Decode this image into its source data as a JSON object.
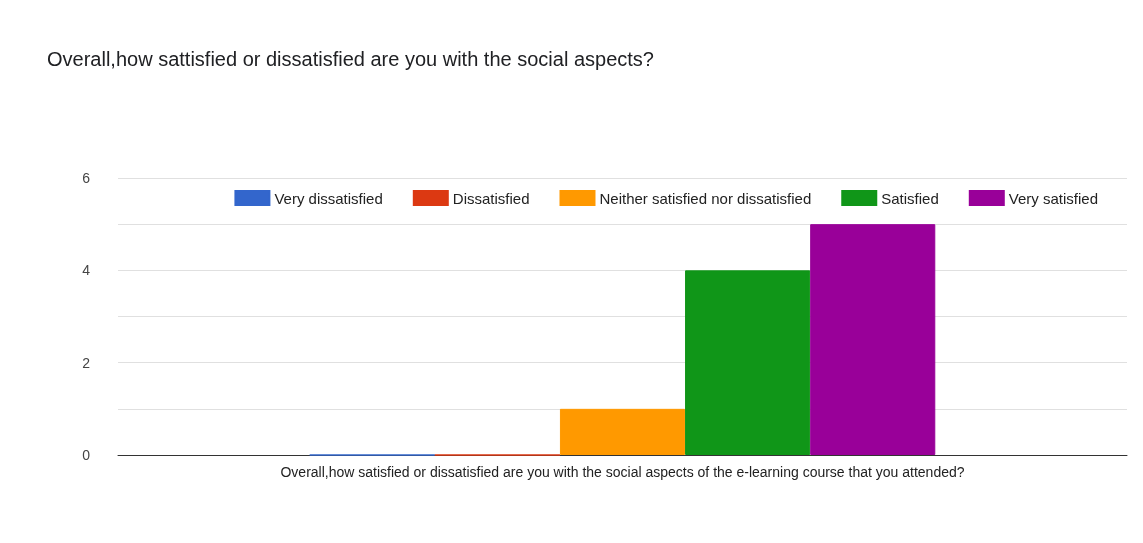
{
  "chart_data": {
    "type": "bar",
    "title": "Overall,how sattisfied or dissatisfied are you with the social aspects?",
    "categories": [
      "Overall,how satisfied or dissatisfied are you with the social aspects of the e-learning course that you attended?"
    ],
    "series": [
      {
        "name": "Very dissatisfied",
        "color": "#3366cc",
        "values": [
          0
        ]
      },
      {
        "name": "Dissatisfied",
        "color": "#dc3912",
        "values": [
          0
        ]
      },
      {
        "name": "Neither satisfied nor dissatisfied",
        "color": "#ff9900",
        "values": [
          1
        ]
      },
      {
        "name": "Satisfied",
        "color": "#109618",
        "values": [
          4
        ]
      },
      {
        "name": "Very satisfied",
        "color": "#990099",
        "values": [
          5
        ]
      }
    ],
    "ylim": [
      0,
      6
    ],
    "yticks": [
      0,
      {
        "value": 1,
        "label": null
      },
      2,
      {
        "value": 3,
        "label": null
      },
      4,
      {
        "value": 5,
        "label": null
      },
      6
    ],
    "grid": "y",
    "legend": "top right"
  }
}
